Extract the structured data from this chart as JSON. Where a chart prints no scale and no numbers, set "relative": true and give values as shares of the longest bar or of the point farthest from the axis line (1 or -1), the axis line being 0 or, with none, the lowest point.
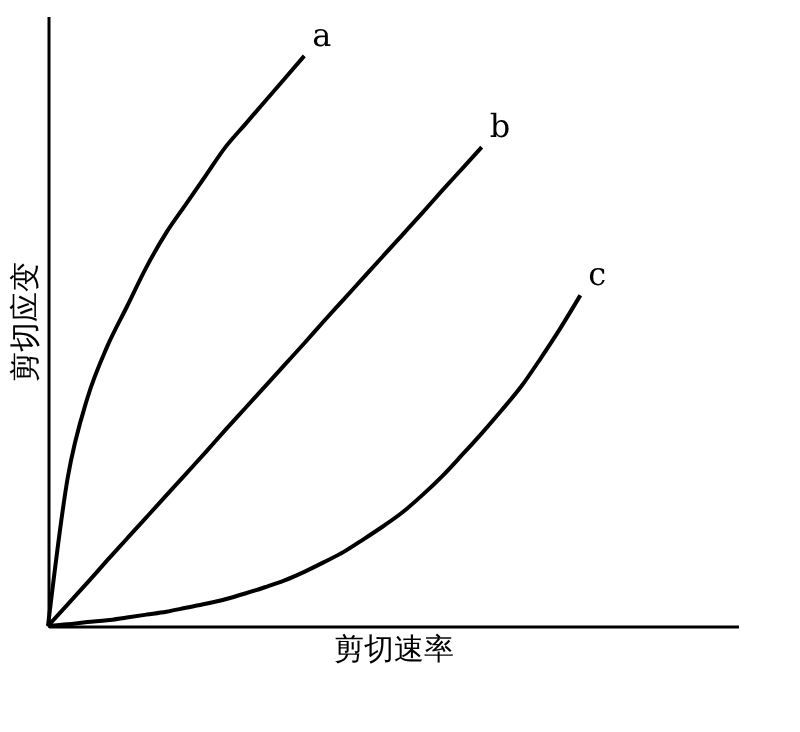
{
  "chart_data": {
    "type": "line",
    "relative": true,
    "xlabel": "剪切速率",
    "ylabel": "剪切应变",
    "categories": [
      null,
      null,
      null,
      null,
      null,
      null,
      null,
      null,
      null,
      null,
      null,
      null,
      null,
      null,
      null,
      null,
      null,
      null,
      null,
      null,
      null,
      null,
      null,
      null,
      null,
      null,
      null,
      null,
      null,
      null,
      null,
      null,
      null,
      null,
      null,
      null
    ],
    "series": [
      {
        "name": "a",
        "color": "#000000",
        "values": [
          0,
          0.26,
          0.4,
          0.49,
          0.56,
          0.63,
          0.69,
          0.74,
          0.79,
          0.84,
          0.88,
          0.92,
          0.96,
          1,
          null,
          null,
          null,
          null,
          null,
          null,
          null,
          null,
          null,
          null,
          null,
          null,
          null,
          null,
          null,
          null,
          null,
          null,
          null,
          null,
          null,
          null
        ]
      },
      {
        "name": "b",
        "color": "#000000",
        "values": [
          0,
          0.038,
          0.076,
          0.115,
          0.153,
          0.191,
          0.229,
          0.267,
          0.305,
          0.344,
          0.382,
          0.42,
          0.458,
          0.496,
          0.535,
          0.573,
          0.611,
          0.649,
          0.687,
          0.725,
          0.764,
          0.802,
          0.84,
          null,
          null,
          null,
          null,
          null,
          null,
          null,
          null,
          null,
          null,
          null,
          null,
          null
        ]
      },
      {
        "name": "c",
        "color": "#000000",
        "values": [
          0,
          0.003,
          0.007,
          0.01,
          0.015,
          0.02,
          0.025,
          0.032,
          0.039,
          0.047,
          0.057,
          0.068,
          0.08,
          0.095,
          0.112,
          0.13,
          0.152,
          0.175,
          0.2,
          0.23,
          0.263,
          0.3,
          0.338,
          0.378,
          0.42,
          0.47,
          0.523,
          0.58,
          null,
          null,
          null,
          null,
          null,
          null,
          null,
          null
        ]
      }
    ],
    "legend": false,
    "grid": false,
    "tick_labels": false,
    "line_style": "solid",
    "marker": "none"
  }
}
